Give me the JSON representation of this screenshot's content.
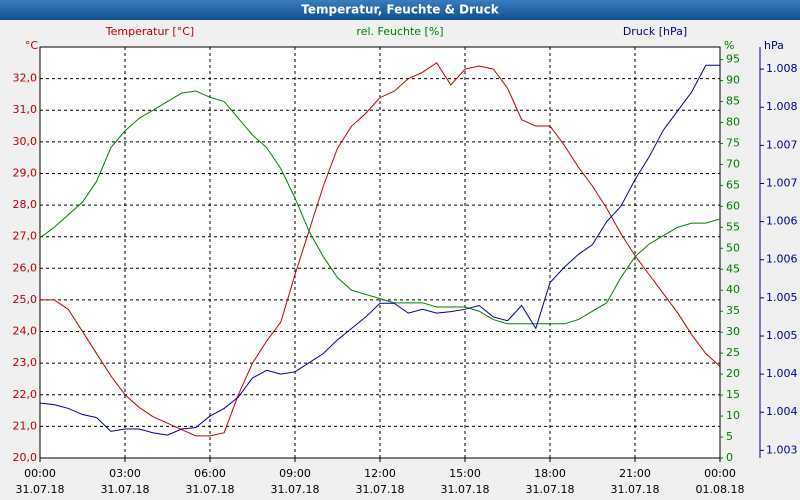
{
  "chart_data": {
    "type": "line",
    "title": "Temperatur, Feuchte & Druck",
    "x": [
      0,
      0.5,
      1,
      1.5,
      2,
      2.5,
      3,
      3.5,
      4,
      4.5,
      5,
      5.5,
      6,
      6.5,
      7,
      7.5,
      8,
      8.5,
      9,
      9.5,
      10,
      10.5,
      11,
      11.5,
      12,
      12.5,
      13,
      13.5,
      14,
      14.5,
      15,
      15.5,
      16,
      16.5,
      17,
      17.5,
      18,
      18.5,
      19,
      19.5,
      20,
      20.5,
      21,
      21.5,
      22,
      22.5,
      23,
      23.5,
      24
    ],
    "xlim": [
      0,
      24
    ],
    "xticks": [
      {
        "value": 0,
        "label": "00:00"
      },
      {
        "value": 3,
        "label": "03:00"
      },
      {
        "value": 6,
        "label": "06:00"
      },
      {
        "value": 9,
        "label": "09:00"
      },
      {
        "value": 12,
        "label": "12:00"
      },
      {
        "value": 15,
        "label": "15:00"
      },
      {
        "value": 18,
        "label": "18:00"
      },
      {
        "value": 21,
        "label": "21:00"
      },
      {
        "value": 24,
        "label": "00:00"
      }
    ],
    "xtick_dates": [
      "31.07.18",
      "31.07.18",
      "31.07.18",
      "31.07.18",
      "31.07.18",
      "31.07.18",
      "31.07.18",
      "31.07.18",
      "01.08.18"
    ],
    "ylabel": "°C",
    "ylim": [
      20,
      33
    ],
    "yticks": [
      {
        "value": 20,
        "label": "20,0"
      },
      {
        "value": 21,
        "label": "21,0"
      },
      {
        "value": 22,
        "label": "22,0"
      },
      {
        "value": 23,
        "label": "23,0"
      },
      {
        "value": 24,
        "label": "24,0"
      },
      {
        "value": 25,
        "label": "25,0"
      },
      {
        "value": 26,
        "label": "26,0"
      },
      {
        "value": 27,
        "label": "27,0"
      },
      {
        "value": 28,
        "label": "28,0"
      },
      {
        "value": 29,
        "label": "29,0"
      },
      {
        "value": 30,
        "label": "30,0"
      },
      {
        "value": 31,
        "label": "31,0"
      },
      {
        "value": 32,
        "label": "32,0"
      }
    ],
    "y2label": "%",
    "y2lim": [
      0,
      98
    ],
    "y2ticks": [
      0,
      5,
      10,
      15,
      20,
      25,
      30,
      35,
      40,
      45,
      50,
      55,
      60,
      65,
      70,
      75,
      80,
      85,
      90,
      95
    ],
    "y3label": "hPa",
    "y3lim": [
      1003.15,
      1008.54
    ],
    "y3ticks": [
      {
        "value": 1003.25,
        "label": "1.003"
      },
      {
        "value": 1003.75,
        "label": "1.004"
      },
      {
        "value": 1004.25,
        "label": "1.004"
      },
      {
        "value": 1004.75,
        "label": "1.005"
      },
      {
        "value": 1005.25,
        "label": "1.005"
      },
      {
        "value": 1005.75,
        "label": "1.006"
      },
      {
        "value": 1006.25,
        "label": "1.006"
      },
      {
        "value": 1006.75,
        "label": "1.007"
      },
      {
        "value": 1007.25,
        "label": "1.007"
      },
      {
        "value": 1007.75,
        "label": "1.008"
      },
      {
        "value": 1008.25,
        "label": "1.008"
      }
    ],
    "grid": true,
    "series": [
      {
        "name": "Temperatur [°C]",
        "color": "#c00000",
        "axis": "y",
        "values": [
          25.0,
          25.0,
          24.7,
          24.0,
          23.3,
          22.6,
          22.0,
          21.6,
          21.3,
          21.1,
          20.9,
          20.7,
          20.7,
          20.8,
          22.0,
          23.0,
          23.7,
          24.3,
          25.8,
          27.2,
          28.6,
          29.8,
          30.5,
          30.9,
          31.4,
          31.6,
          32.0,
          32.2,
          32.5,
          31.8,
          32.3,
          32.4,
          32.3,
          31.7,
          30.7,
          30.5,
          30.5,
          29.9,
          29.2,
          28.6,
          27.9,
          27.1,
          26.4,
          25.8,
          25.2,
          24.6,
          23.9,
          23.3,
          22.9
        ]
      },
      {
        "name": "rel. Feuchte [%]",
        "color": "#008000",
        "axis": "y2",
        "values": [
          52.5,
          55,
          58,
          61,
          66,
          74,
          78,
          81,
          83,
          85,
          87,
          87.5,
          86,
          85,
          81,
          77,
          74,
          69,
          62,
          54,
          48,
          43,
          40,
          39,
          38,
          37,
          37,
          37,
          36,
          36,
          36,
          35,
          33,
          32,
          32,
          32,
          32,
          32,
          33,
          35,
          37,
          43,
          48,
          51,
          53,
          55,
          56,
          56,
          57
        ]
      },
      {
        "name": "Druck [hPa]",
        "color": "#000099",
        "axis": "y3",
        "values": [
          1003.87,
          1003.85,
          1003.8,
          1003.72,
          1003.68,
          1003.5,
          1003.53,
          1003.53,
          1003.48,
          1003.45,
          1003.53,
          1003.55,
          1003.7,
          1003.8,
          1003.95,
          1004.2,
          1004.3,
          1004.25,
          1004.28,
          1004.4,
          1004.52,
          1004.7,
          1004.85,
          1005.0,
          1005.18,
          1005.18,
          1005.05,
          1005.1,
          1005.05,
          1005.07,
          1005.1,
          1005.15,
          1005.0,
          1004.95,
          1005.15,
          1004.85,
          1005.45,
          1005.65,
          1005.82,
          1005.95,
          1006.25,
          1006.45,
          1006.8,
          1007.1,
          1007.45,
          1007.7,
          1007.95,
          1008.3,
          1008.3
        ]
      }
    ]
  }
}
